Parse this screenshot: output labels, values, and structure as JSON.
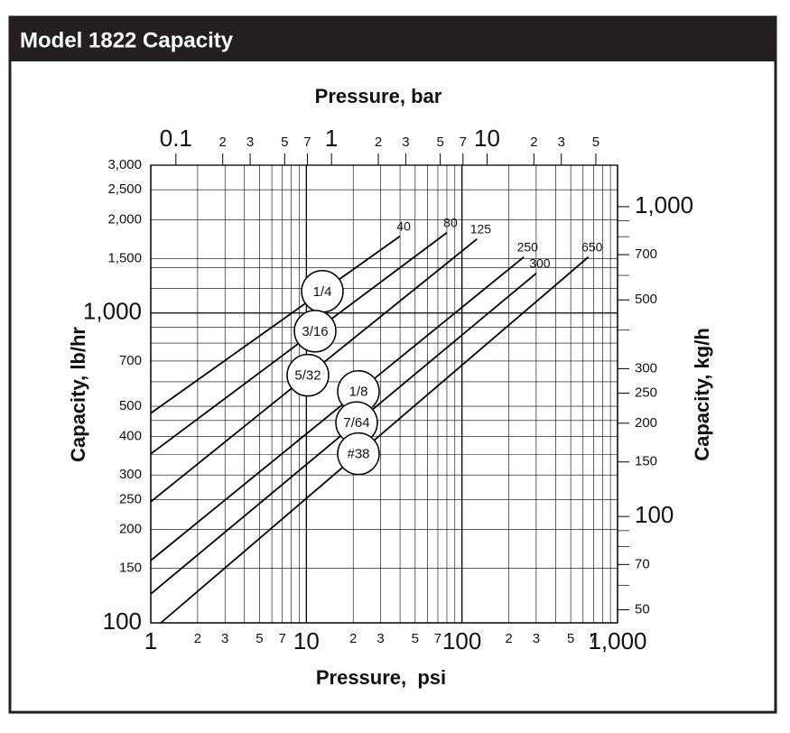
{
  "header": {
    "title": "Model 1822 Capacity"
  },
  "chart_data": {
    "type": "line",
    "x_label": "Pressure,  psi",
    "x2_label": "Pressure, bar",
    "y_label": "Capacity, lb/hr",
    "y2_label": "Capacity, kg/h",
    "log_x": true,
    "log_y": true,
    "grid": true,
    "xlim": [
      1,
      1000
    ],
    "xticks": [
      1,
      2,
      3,
      5,
      7,
      10,
      {
        "value": 20,
        "label": "2"
      },
      {
        "value": 30,
        "label": "3"
      },
      {
        "value": 50,
        "label": "5"
      },
      {
        "value": 70,
        "label": "7"
      },
      100,
      {
        "value": 200,
        "label": "2"
      },
      {
        "value": 300,
        "label": "3"
      },
      {
        "value": 500,
        "label": "5"
      },
      {
        "value": 700,
        "label": "7"
      },
      {
        "value": 1000,
        "label": "1,000"
      }
    ],
    "xminorticks": [
      4,
      6,
      8,
      9,
      40,
      60,
      80,
      90,
      400,
      600,
      800,
      900
    ],
    "x2lim": [
      0.06895,
      68.95
    ],
    "x2ticks": [
      0.1,
      {
        "value": 0.2,
        "label": "2"
      },
      {
        "value": 0.3,
        "label": "3"
      },
      {
        "value": 0.5,
        "label": "5"
      },
      {
        "value": 0.7,
        "label": "7"
      },
      1,
      2,
      3,
      5,
      7,
      10,
      {
        "value": 20,
        "label": "2"
      },
      {
        "value": 30,
        "label": "3"
      },
      {
        "value": 50,
        "label": "5"
      }
    ],
    "ylim": [
      100,
      3000
    ],
    "yticks": [
      100,
      150,
      200,
      250,
      300,
      400,
      500,
      700,
      {
        "value": 1000,
        "label": "1,000"
      },
      {
        "value": 1500,
        "label": "1,500"
      },
      {
        "value": 2000,
        "label": "2,000"
      },
      {
        "value": 2500,
        "label": "2,500"
      },
      {
        "value": 3000,
        "label": "3,000"
      }
    ],
    "yminorticks": [
      350,
      450,
      600,
      800,
      900,
      1200,
      1400
    ],
    "y2lim": [
      45.36,
      1360.8
    ],
    "y2ticks": [
      50,
      70,
      100,
      150,
      200,
      250,
      300,
      500,
      700,
      {
        "value": 1000,
        "label": "1,000"
      }
    ],
    "y2minorticks": [
      60,
      80,
      90,
      400,
      600,
      800,
      900
    ],
    "series": [
      {
        "name": "1/4",
        "color": "#000000",
        "x": [
          1,
          40
        ],
        "values": [
          475,
          1770
        ]
      },
      {
        "name": "3/16",
        "color": "#000000",
        "x": [
          1,
          80
        ],
        "values": [
          351,
          1817
        ]
      },
      {
        "name": "5/32",
        "color": "#000000",
        "x": [
          1,
          125
        ],
        "values": [
          246,
          1734
        ]
      },
      {
        "name": "1/8",
        "color": "#000000",
        "x": [
          1,
          250
        ],
        "values": [
          159,
          1517
        ]
      },
      {
        "name": "7/64",
        "color": "#000000",
        "x": [
          1,
          300
        ],
        "values": [
          124,
          1343
        ]
      },
      {
        "name": "#38",
        "color": "#000000",
        "x": [
          1.16,
          650
        ],
        "values": [
          100,
          1517
        ]
      }
    ]
  }
}
